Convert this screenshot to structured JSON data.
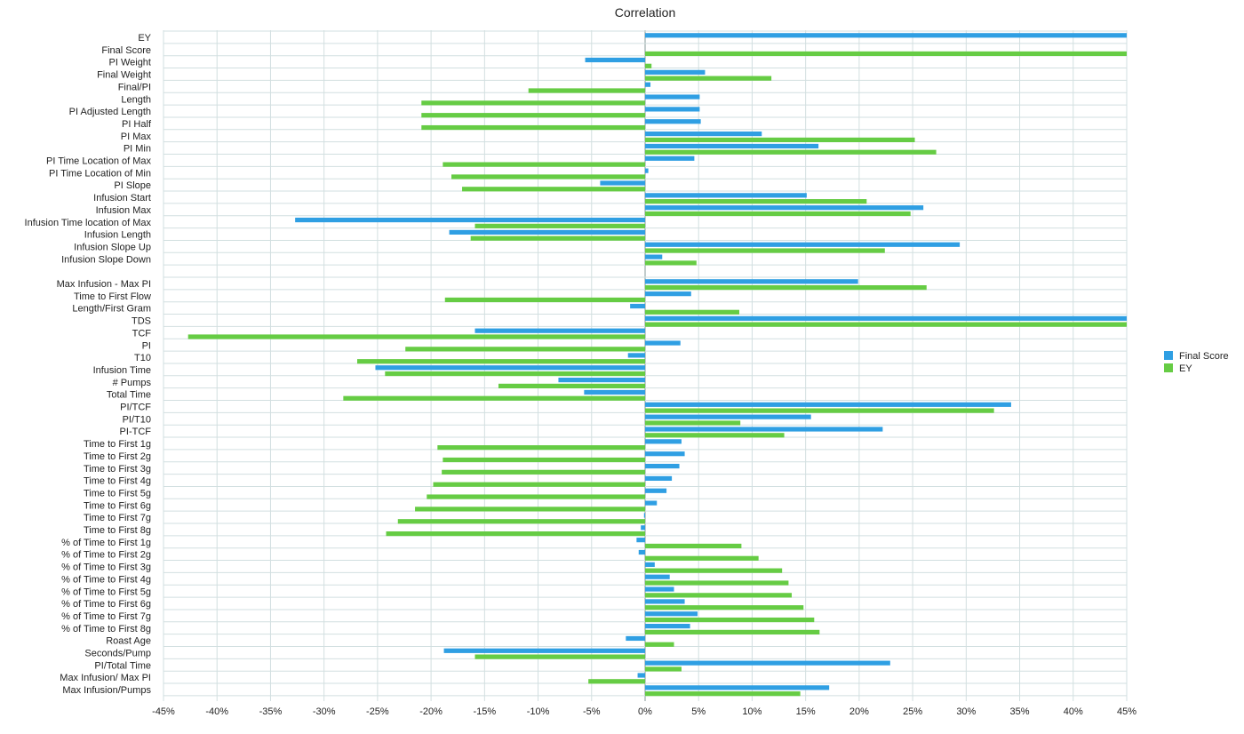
{
  "chart_data": {
    "type": "bar",
    "orientation": "horizontal",
    "title": "Correlation",
    "xlabel": "",
    "ylabel": "",
    "xlim": [
      -45,
      45
    ],
    "x_ticks": [
      -45,
      -40,
      -35,
      -30,
      -25,
      -20,
      -15,
      -10,
      -5,
      0,
      5,
      10,
      15,
      20,
      25,
      30,
      35,
      40,
      45
    ],
    "x_tick_labels": [
      "-45%",
      "-40%",
      "-35%",
      "-30%",
      "-25%",
      "-20%",
      "-15%",
      "-10%",
      "-5%",
      "0%",
      "5%",
      "10%",
      "15%",
      "20%",
      "25%",
      "30%",
      "35%",
      "40%",
      "45%"
    ],
    "grid": true,
    "legend_position": "right",
    "colors": {
      "Final Score": "#2f9fe3",
      "EY": "#66cc44"
    },
    "categories": [
      "EY",
      "Final Score",
      "PI Weight",
      "Final Weight",
      "Final/PI",
      "Length",
      "PI Adjusted Length",
      "PI Half",
      "PI Max",
      "PI Min",
      "PI Time Location of Max",
      "PI Time Location of Min",
      "PI Slope",
      "Infusion Start",
      "Infusion Max",
      "Infusion Time location of Max",
      "Infusion Length",
      "Infusion Slope Up",
      "Infusion Slope Down",
      "",
      "Max Infusion - Max PI",
      "Time to First Flow",
      "Length/First Gram",
      "TDS",
      "TCF",
      "PI",
      "T10",
      "Infusion Time",
      "# Pumps",
      "Total Time",
      "PI/TCF",
      "PI/T10",
      "PI-TCF",
      "Time to First 1g",
      "Time to First 2g",
      "Time to First 3g",
      "Time to First 4g",
      "Time to First 5g",
      "Time to First 6g",
      "Time to First 7g",
      "Time to First 8g",
      "% of Time to First 1g",
      "% of Time to First 2g",
      "% of Time to First 3g",
      "% of Time to First 4g",
      "% of Time to First 5g",
      "% of Time to First 6g",
      "% of Time to First 7g",
      "% of Time to First 8g",
      "Roast Age",
      "Seconds/Pump",
      "PI/Total Time",
      "Max Infusion/ Max PI",
      "Max Infusion/Pumps"
    ],
    "series": [
      {
        "name": "Final Score",
        "values": [
          45,
          null,
          -5.6,
          5.6,
          0.5,
          5.1,
          5.1,
          5.2,
          10.9,
          16.2,
          4.6,
          0.3,
          -4.2,
          15.1,
          26.0,
          -32.7,
          -18.3,
          29.4,
          1.6,
          null,
          19.9,
          4.3,
          -1.4,
          45,
          -15.9,
          3.3,
          -1.6,
          -25.2,
          -8.1,
          -5.7,
          34.2,
          15.5,
          22.2,
          3.4,
          3.7,
          3.2,
          2.5,
          2.0,
          1.1,
          -0.1,
          -0.4,
          -0.8,
          -0.6,
          0.9,
          2.3,
          2.7,
          3.7,
          4.9,
          4.2,
          -1.8,
          -18.8,
          22.9,
          -0.7,
          17.2
        ]
      },
      {
        "name": "EY",
        "values": [
          null,
          45,
          0.6,
          11.8,
          -10.9,
          -20.9,
          -20.9,
          -20.9,
          25.2,
          27.2,
          -18.9,
          -18.1,
          -17.1,
          20.7,
          24.8,
          -15.9,
          -16.3,
          22.4,
          4.8,
          null,
          26.3,
          -18.7,
          8.8,
          45,
          -42.7,
          -22.4,
          -26.9,
          -24.3,
          -13.7,
          -28.2,
          32.6,
          8.9,
          13.0,
          -19.4,
          -18.9,
          -19.0,
          -19.8,
          -20.4,
          -21.5,
          -23.1,
          -24.2,
          9.0,
          10.6,
          12.8,
          13.4,
          13.7,
          14.8,
          15.8,
          16.3,
          2.7,
          -15.9,
          3.4,
          -5.3,
          14.5
        ]
      }
    ]
  }
}
